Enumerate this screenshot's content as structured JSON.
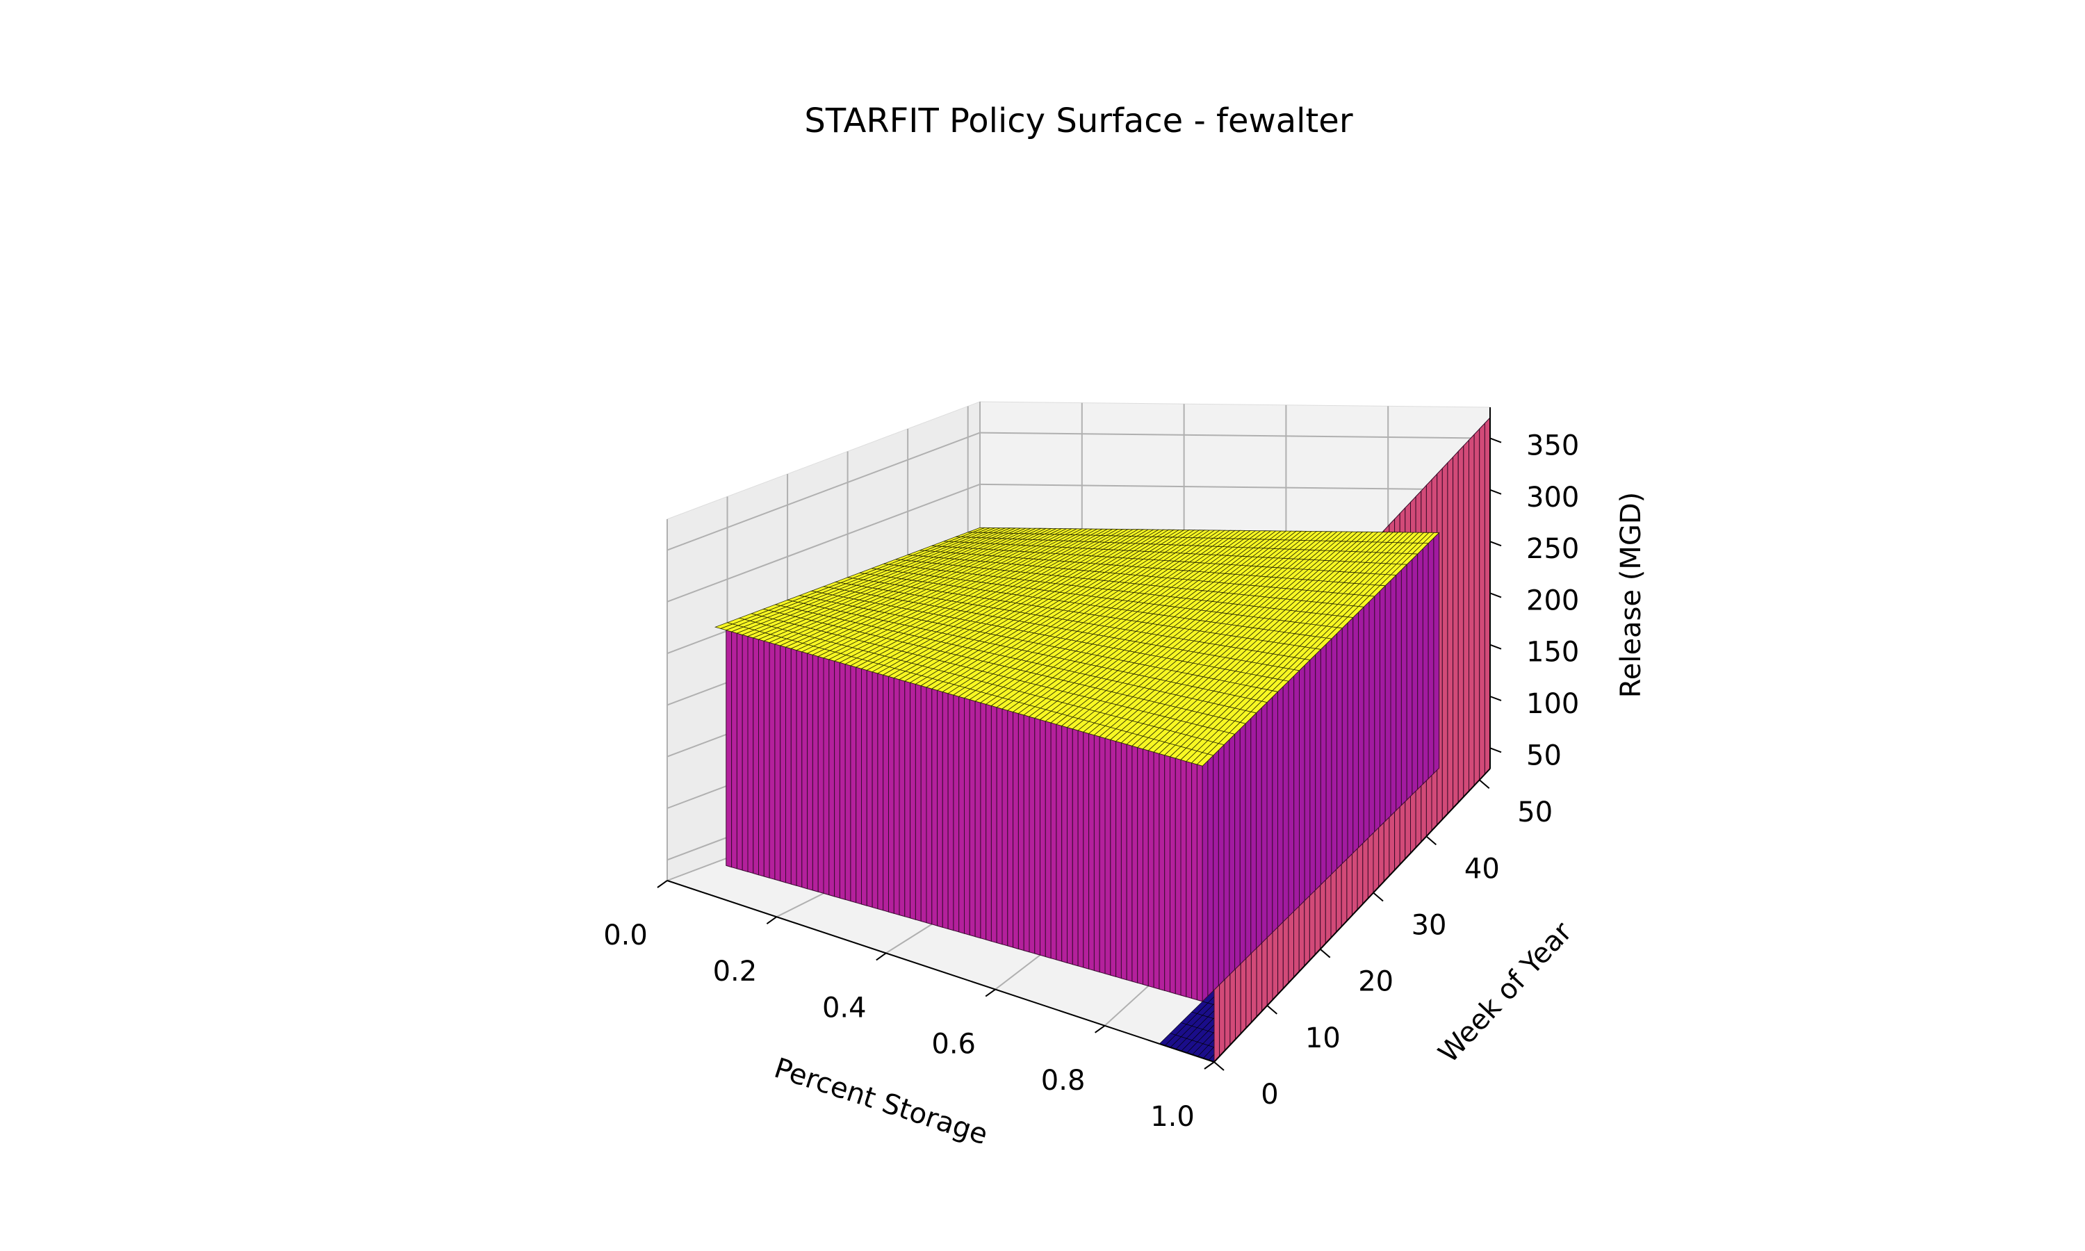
{
  "chart_data": {
    "type": "surface3d",
    "title": "STARFIT Policy Surface - fewalter",
    "xlabel": "Percent Storage",
    "ylabel": "Week of Year",
    "zlabel": "Release (MGD)",
    "x_ticks": [
      "0.0",
      "0.2",
      "0.4",
      "0.6",
      "0.8",
      "1.0"
    ],
    "x_tick_values": [
      0.0,
      0.2,
      0.4,
      0.6,
      0.8,
      1.0
    ],
    "y_ticks": [
      "0",
      "10",
      "20",
      "30",
      "40",
      "50"
    ],
    "y_tick_values": [
      0,
      10,
      20,
      30,
      40,
      50
    ],
    "z_ticks": [
      "50",
      "100",
      "150",
      "200",
      "250",
      "300",
      "350"
    ],
    "z_tick_values": [
      50,
      100,
      150,
      200,
      250,
      300,
      350
    ],
    "xlim": [
      0.0,
      1.0
    ],
    "ylim": [
      0,
      52
    ],
    "zlim": [
      30,
      380
    ],
    "grid": true,
    "colormap": "plasma",
    "regions": [
      {
        "name": "flood-plateau",
        "x_range": [
          0.0,
          1.0
        ],
        "y_range": [
          0,
          52
        ],
        "release": 258,
        "color": "#f7f723"
      },
      {
        "name": "low-storage-release",
        "x_range": [
          0.0,
          1.0
        ],
        "y_range": [
          0,
          52
        ],
        "release": 30,
        "color": "#1a0d8a"
      },
      {
        "name": "max-release-wall",
        "x_value": 1.0,
        "y_range": [
          0,
          52
        ],
        "release": 370,
        "color": "#d24a78"
      }
    ],
    "colors": {
      "wall_front": "#b4209c",
      "wall_right": "#a21aa0",
      "pane": "#f2f2f2",
      "grid": "#b0b0b0"
    }
  }
}
